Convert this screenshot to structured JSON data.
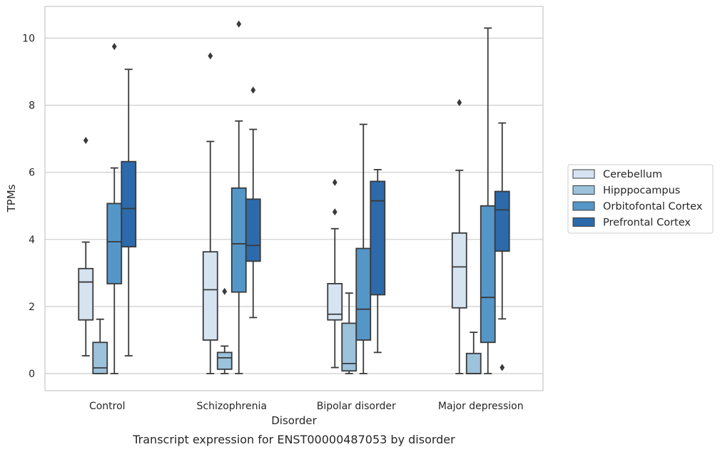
{
  "chart_data": {
    "type": "box",
    "caption": "Transcript expression for ENST00000487053 by disorder",
    "xlabel": "Disorder",
    "ylabel": "TPMs",
    "ylim": [
      -0.5,
      10.9
    ],
    "yticks": [
      0,
      2,
      4,
      6,
      8,
      10
    ],
    "grid": true,
    "legend_position": "right",
    "categories": [
      "Control",
      "Schizophrenia",
      "Bipolar disorder",
      "Major depression"
    ],
    "series": [
      {
        "name": "Cerebellum",
        "color": "#d6e4f2",
        "boxes": [
          {
            "whisker_low": 0.53,
            "q1": 1.6,
            "median": 2.73,
            "q3": 3.13,
            "whisker_high": 3.92,
            "outliers": [
              6.95
            ]
          },
          {
            "whisker_low": 0.0,
            "q1": 1.0,
            "median": 2.5,
            "q3": 3.63,
            "whisker_high": 6.92,
            "outliers": [
              9.47
            ]
          },
          {
            "whisker_low": 0.18,
            "q1": 1.6,
            "median": 1.77,
            "q3": 2.68,
            "whisker_high": 4.32,
            "outliers": [
              4.82,
              5.7
            ]
          },
          {
            "whisker_low": 0.0,
            "q1": 1.96,
            "median": 3.18,
            "q3": 4.19,
            "whisker_high": 6.06,
            "outliers": [
              8.08
            ]
          }
        ]
      },
      {
        "name": "Hipppocampus",
        "color": "#9cc2dc",
        "boxes": [
          {
            "whisker_low": 0.0,
            "q1": 0.0,
            "median": 0.17,
            "q3": 0.93,
            "whisker_high": 1.62,
            "outliers": []
          },
          {
            "whisker_low": 0.0,
            "q1": 0.13,
            "median": 0.47,
            "q3": 0.63,
            "whisker_high": 0.82,
            "outliers": [
              2.45
            ]
          },
          {
            "whisker_low": 0.0,
            "q1": 0.08,
            "median": 0.3,
            "q3": 1.5,
            "whisker_high": 2.4,
            "outliers": []
          },
          {
            "whisker_low": 0.0,
            "q1": 0.0,
            "median": 0.0,
            "q3": 0.6,
            "whisker_high": 1.23,
            "outliers": []
          }
        ]
      },
      {
        "name": "Orbitofontal Cortex",
        "color": "#5596c8",
        "boxes": [
          {
            "whisker_low": 0.0,
            "q1": 2.68,
            "median": 3.93,
            "q3": 5.07,
            "whisker_high": 6.13,
            "outliers": [
              9.75
            ]
          },
          {
            "whisker_low": 0.0,
            "q1": 2.43,
            "median": 3.87,
            "q3": 5.53,
            "whisker_high": 7.53,
            "outliers": [
              10.42
            ]
          },
          {
            "whisker_low": 0.0,
            "q1": 1.0,
            "median": 1.92,
            "q3": 3.73,
            "whisker_high": 7.43,
            "outliers": []
          },
          {
            "whisker_low": 0.0,
            "q1": 0.93,
            "median": 2.27,
            "q3": 5.0,
            "whisker_high": 10.3,
            "outliers": []
          }
        ]
      },
      {
        "name": "Prefrontal Cortex",
        "color": "#2c6aab",
        "boxes": [
          {
            "whisker_low": 0.53,
            "q1": 3.78,
            "median": 4.92,
            "q3": 6.32,
            "whisker_high": 9.07,
            "outliers": []
          },
          {
            "whisker_low": 1.67,
            "q1": 3.35,
            "median": 3.82,
            "q3": 5.2,
            "whisker_high": 7.28,
            "outliers": [
              8.45
            ]
          },
          {
            "whisker_low": 0.63,
            "q1": 2.35,
            "median": 5.15,
            "q3": 5.73,
            "whisker_high": 6.08,
            "outliers": []
          },
          {
            "whisker_low": 1.63,
            "q1": 3.65,
            "median": 4.88,
            "q3": 5.43,
            "whisker_high": 7.47,
            "outliers": [
              0.18
            ]
          }
        ]
      }
    ]
  }
}
